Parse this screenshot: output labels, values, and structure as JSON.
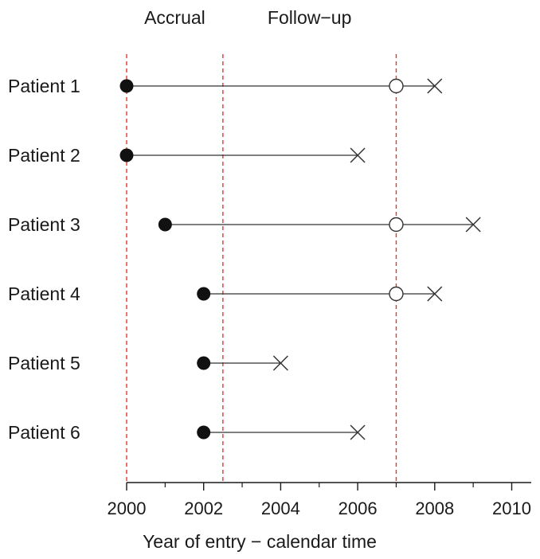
{
  "chart_data": {
    "type": "timeline",
    "xlabel": "Year of entry − calendar time",
    "xlim": [
      2000,
      2010.5
    ],
    "x_ticks": [
      2000,
      2002,
      2004,
      2006,
      2008,
      2010
    ],
    "x_tick_labels": [
      "2000",
      "2002",
      "2004",
      "2006",
      "2008",
      "2010"
    ],
    "x_minor_ticks": [
      2001,
      2003,
      2005,
      2007,
      2009
    ],
    "phase_labels": [
      {
        "text": "Accrual",
        "x": 2001.25
      },
      {
        "text": "Follow−up",
        "x": 2004.75
      }
    ],
    "reference_lines": [
      2000,
      2002.5,
      2007
    ],
    "reference_line_color": "#e03a2f",
    "patients": [
      {
        "label": "Patient 1",
        "entry": 2000,
        "end": 2008,
        "censor": 2007
      },
      {
        "label": "Patient 2",
        "entry": 2000,
        "end": 2006,
        "censor": null
      },
      {
        "label": "Patient 3",
        "entry": 2001,
        "end": 2009,
        "censor": 2007
      },
      {
        "label": "Patient 4",
        "entry": 2002,
        "end": 2008,
        "censor": 2007
      },
      {
        "label": "Patient 5",
        "entry": 2002,
        "end": 2004,
        "censor": null
      },
      {
        "label": "Patient 6",
        "entry": 2002,
        "end": 2006,
        "censor": null
      }
    ],
    "markers": {
      "entry": "filled-circle",
      "censor": "open-circle",
      "end": "cross"
    }
  }
}
